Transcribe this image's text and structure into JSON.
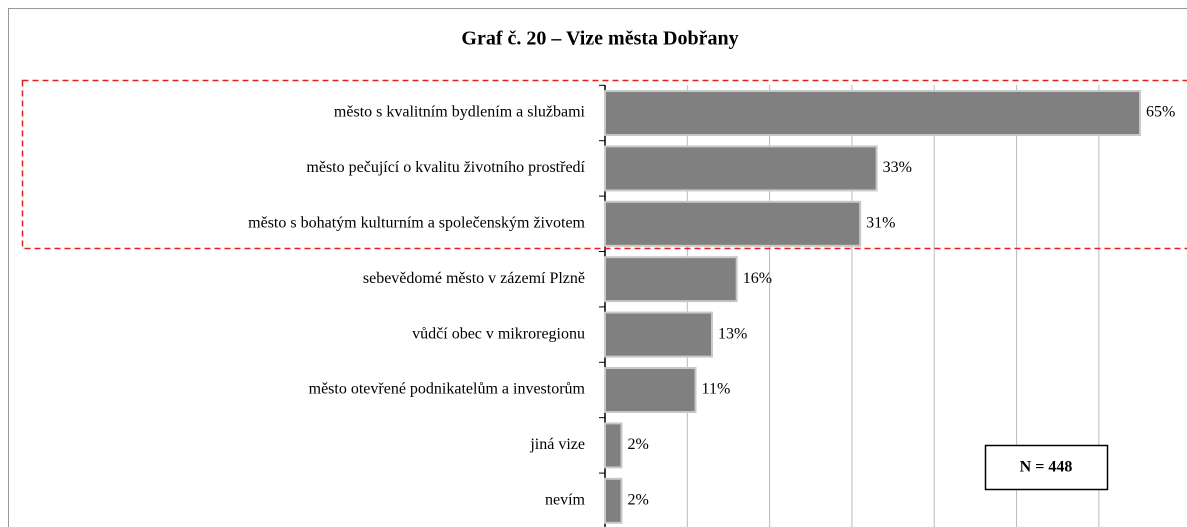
{
  "chart_data": {
    "type": "bar",
    "orientation": "horizontal",
    "title": "Graf č. 20 – Vize města Dobřany",
    "categories": [
      "město s kvalitním bydlením a službami",
      "město pečující o kvalitu životního prostředí",
      "město s bohatým kulturním a společenským životem",
      "sebevědomé město v zázemí Plzně",
      "vůdčí obec v mikroregionu",
      "město otevřené podnikatelům a investorům",
      "jiná vize",
      "nevím"
    ],
    "values": [
      65,
      33,
      31,
      16,
      13,
      11,
      2,
      2
    ],
    "value_labels": [
      "65%",
      "33%",
      "31%",
      "16%",
      "13%",
      "11%",
      "2%",
      "2%"
    ],
    "color": "#808080",
    "xlim": [
      0,
      65
    ],
    "xticks": [
      10,
      20,
      30,
      40,
      50,
      60
    ],
    "grid": true,
    "annotation": "N = 448"
  }
}
